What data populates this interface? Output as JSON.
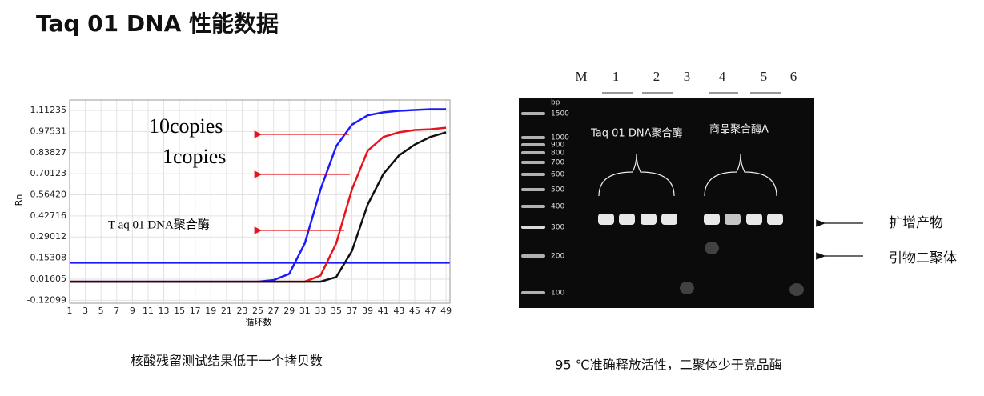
{
  "title": "Taq 01 DNA 性能数据",
  "chart_data": {
    "type": "line",
    "ylabel": "Rn",
    "xlabel": "循环数",
    "annotations": [
      "10copies",
      "1copies",
      "T aq 01 DNA聚合酶"
    ],
    "xlim": [
      1,
      49.5
    ],
    "ylim": [
      -0.14,
      1.18
    ],
    "xticks": [
      1,
      3,
      5,
      7,
      9,
      11,
      13,
      15,
      17,
      19,
      21,
      23,
      25,
      27,
      29,
      31,
      33,
      35,
      37,
      39,
      41,
      43,
      45,
      47,
      49
    ],
    "yticks": [
      1.11235,
      0.97531,
      0.83827,
      0.70123,
      {
        "value": 0.5642,
        "label": "0.56420"
      },
      0.42716,
      0.29012,
      0.15308,
      0.01605,
      -0.12099
    ],
    "grid": true,
    "threshold": {
      "value": 0.122,
      "color": "#1a1aff"
    },
    "x": [
      1,
      3,
      5,
      7,
      9,
      11,
      13,
      15,
      17,
      19,
      21,
      23,
      25,
      27,
      29,
      31,
      33,
      35,
      37,
      39,
      41,
      43,
      45,
      47,
      49
    ],
    "series": [
      {
        "color": "#1a1aff",
        "values": [
          0,
          0,
          0,
          0,
          0,
          0,
          0,
          0,
          0,
          0,
          0,
          0,
          0,
          0.01,
          0.05,
          0.25,
          0.6,
          0.88,
          1.02,
          1.08,
          1.1,
          1.11,
          1.115,
          1.12,
          1.12
        ]
      },
      {
        "color": "#e8141c",
        "values": [
          0,
          0,
          0,
          0,
          0,
          0,
          0,
          0,
          0,
          0,
          0,
          0,
          0,
          0,
          0,
          0.0,
          0.04,
          0.25,
          0.6,
          0.85,
          0.94,
          0.97,
          0.985,
          0.99,
          1.0
        ]
      },
      {
        "color": "#111111",
        "values": [
          0,
          0,
          0,
          0,
          0,
          0,
          0,
          0,
          0,
          0,
          0,
          0,
          0,
          0,
          0,
          0,
          0.0,
          0.03,
          0.2,
          0.5,
          0.7,
          0.82,
          0.89,
          0.94,
          0.97
        ]
      }
    ]
  },
  "gel": {
    "lanes": [
      "M",
      "1",
      "2",
      "3",
      "4",
      "5",
      "6"
    ],
    "ladder": [
      "bp",
      "1500",
      "1000",
      "900",
      "800",
      "700",
      "600",
      "500",
      "400",
      "300",
      "200",
      "100"
    ],
    "groups": [
      "Taq 01 DNA聚合酶",
      "商品聚合酶A"
    ],
    "labels": [
      "扩增产物",
      "引物二聚体"
    ]
  },
  "captions": [
    "核酸残留测试结果低于一个拷贝数",
    "95 ℃准确释放活性，二聚体少于竞品酶"
  ]
}
